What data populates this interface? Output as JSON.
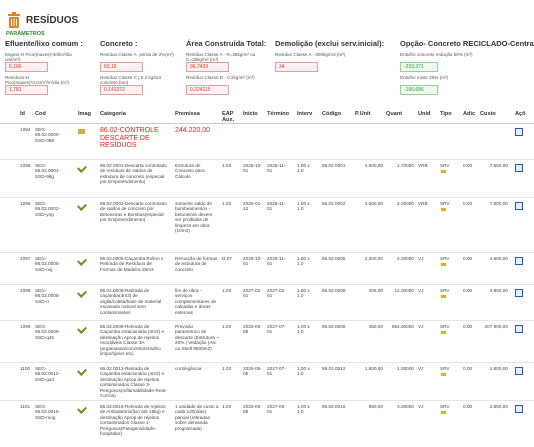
{
  "header": {
    "title": "RESÍDUOS",
    "subtitle": "PARÂMETROS"
  },
  "parameters": [
    {
      "title": "Efluente/lixo comum :",
      "items": [
        {
          "label": "Esgoto-H Pico(maxes)*40l/m²dia unit/m²)",
          "value": "6,166"
        },
        {
          "label": "Resíduos-H Pico(maxes)*0.01m³/m²dia (m³)",
          "value": "1,781"
        }
      ]
    },
    {
      "title": "Concreto :",
      "items": [
        {
          "label": "Resíduo Classe A- perda de 2%(m³)",
          "value": "63,16"
        },
        {
          "label": "Resíduo Classe C | 0.2 kg/m3 concreto (ton)",
          "value": "0,141372"
        }
      ]
    },
    {
      "title": "Área Construída Total:",
      "items": [
        {
          "label": "Resíduo Classe A - R=35kg/m² ou C=35kg/m² (m³)",
          "value": "96,7439"
        },
        {
          "label": "Resíduo Classe D - 0.2kg/m² (m³)",
          "value": "0,224115"
        }
      ]
    },
    {
      "title": "Demolição (exclui serv.inicial):",
      "items": [
        {
          "label": "Resíduo Classe A - 800kg/m3 (m³)",
          "value": "34"
        }
      ]
    },
    {
      "title": "Opção- Concreto RECICLADO-Central(meta 75%) :",
      "items": [
        {
          "label": "Entulho concreto redução 50% (m³)",
          "value": "-333,371"
        },
        {
          "label": "Entulho misto 25% (m³)",
          "value": "-166,686"
        }
      ]
    }
  ],
  "table": {
    "columns": [
      "Id",
      "Cod",
      "Imag",
      "Categoria",
      "Premissa",
      "EAP Aux.",
      "Início",
      "Término",
      "Interv",
      "Código",
      "P.Unit",
      "Quant",
      "Unid",
      "Tipo",
      "Adic",
      "Custo",
      "Açõ"
    ],
    "rows": [
      {
        "id": "1094",
        "cod": "SEG-86.02.0000-SSD-098",
        "categoria": "86.02-CONTROLE DESCARTE DE RESÍDUOS",
        "premissa": "244.220,00"
      },
      {
        "id": "1095",
        "cod": "SEG-86.02.0001-SSD-98g",
        "categoria": "86.02.0001-Descarta controlado de resíduos de saldos de estrutura de concreto (especial por Empreendimento)",
        "premissa": "Estrutura de Concreto para Cálculo",
        "eap": "1.03",
        "inicio": "2026-10-01",
        "termino": "2026-11-01",
        "interv": "1.00 x 1.0",
        "codigo": "86.02.0001",
        "punit": "4.500,00",
        "quant": "1.70000",
        "unid": "VRB",
        "tipo": "SRV",
        "adic": "0.00",
        "custo": "7.650,00"
      },
      {
        "id": "1096",
        "cod": "SEG-86.02.0002-SSD-y4g",
        "categoria": "86.02.0002-Descarte controlado de saldos de concreto por Betoneiras e Bombas(especial por Empreendimento)",
        "premissa": "somente saldo de bombeamentos - betoneiras devem ser proibidas de limpeza em obra (10m3)",
        "eap": "1.03",
        "inicio": "2026-01-12",
        "termino": "2026-11-01",
        "interv": "1.00 x 1.0",
        "codigo": "86.02.0002",
        "punit": "3.500,00",
        "quant": "2.00000",
        "unid": "VRB",
        "tipo": "SRV",
        "adic": "0.00",
        "custo": "7.000,00"
      },
      {
        "id": "1097",
        "cod": "SEG-86.02.0005-SSD-noj",
        "categoria": "86.02.0005-Caçamba Rollon e Retirada de Resíduos de Formas de Madeira 26m3",
        "premissa": "Remoção de formas de estrutura de concreto",
        "eap": "D.07",
        "inicio": "2026-10-01",
        "termino": "2026-11-01",
        "interv": "1.00 x 1.0",
        "codigo": "86.02.0005",
        "punit": "2.300,00",
        "quant": "2.00000",
        "unid": "VJ",
        "tipo": "SRV",
        "adic": "0.00",
        "custo": "4.600,00"
      },
      {
        "id": "1098",
        "cod": "SEG-86.02.0008-SSD-rr",
        "categoria": "86.02.0008-Retirada de caçamba(4m3) de argila/coleta/base de material escavado natural sem contaminantes",
        "premissa": "fim de obra - serviços complementares de calçadas e áreas externas",
        "eap": "1.03",
        "inicio": "2027-02-01",
        "termino": "2027-02-01",
        "interv": "1.00 x 1.0",
        "codigo": "86.02.0008",
        "punit": "405,00",
        "quant": "12.00000",
        "unid": "VJ",
        "tipo": "SRV",
        "adic": "0.00",
        "custo": "4.860,00"
      },
      {
        "id": "1099",
        "cod": "SEG-86.02.0009-SSD-q45",
        "categoria": "86.02.0009-Retirada de Caçamba estacionária (4m3) e destinação Aprop.de rejeitos recicláveis Classe 3A (argamassa/concreto/entulho limpo/tijolos etc)",
        "premissa": "Previsão parametrico de descarte (Estrutura ~ 20% | Vedação (Alv ou Shell 8500m2)",
        "eap": "1.03",
        "inicio": "2026-05-05",
        "termino": "2027-07-01",
        "interv": "1.00 x 1.0",
        "codigo": "86.02.0009",
        "punit": "350,00",
        "quant": "594.00000",
        "unid": "VJ",
        "tipo": "SRV",
        "adic": "0.00",
        "custo": "207.900,00"
      },
      {
        "id": "1100",
        "cod": "SEG-86.02.0012-SSD-gud",
        "categoria": "86.02.0012-Retirada de Caçamba estacionária (4m3) e destinação Aprop.de rejeitos contaminados Classe 3-Perigosos(Inflamabilidade-Reat-Corros)",
        "premissa": "contingência",
        "eap": "1.03",
        "inicio": "2026-05-05",
        "termino": "2027-07-01",
        "interv": "1.00 x 1.0",
        "codigo": "86.02.0012",
        "punit": "1.800,00",
        "quant": "1.00000",
        "unid": "VJ",
        "tipo": "SRV",
        "adic": "0.00",
        "custo": "1.800,00"
      },
      {
        "id": "1101",
        "cod": "SEG-86.02.0016-SSD-rsog",
        "categoria": "86.02.0016-Retirada de rejeitos de Ambulatório(lixo até 15kg) e destinação Aprop.de rejeitos contaminados Classe 1-Perigosos(Patogenicidade-hospitalar)",
        "premissa": "1 unidade de custo a cada 120(dias) parcial (retiradas sobre demanda programada)",
        "eap": "1.03",
        "inicio": "2026-05-05",
        "termino": "2027-05-01",
        "interv": "1.00 x 1.0",
        "codigo": "86.02.0016",
        "punit": "950,00",
        "quant": "3.00000",
        "unid": "VJ",
        "tipo": "SRV",
        "adic": "0.00",
        "custo": "2.850,00"
      }
    ]
  }
}
